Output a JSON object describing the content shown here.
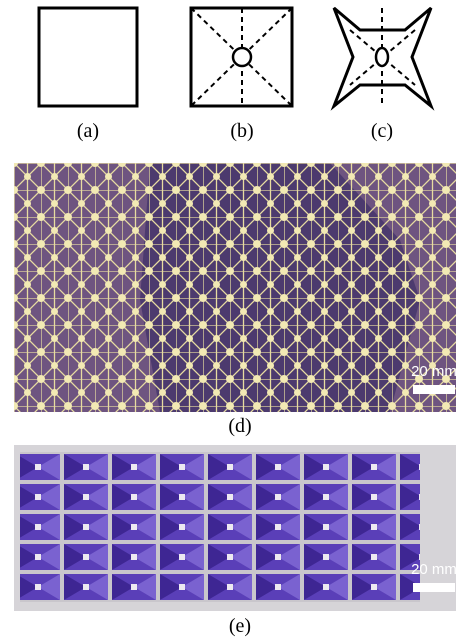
{
  "panels": [
    {
      "label": "(a)"
    },
    {
      "label": "(b)"
    },
    {
      "label": "(c)"
    },
    {
      "label": "(d)",
      "scale_bar": "20 mm"
    },
    {
      "label": "(e)",
      "scale_bar": "20 mm"
    }
  ]
}
